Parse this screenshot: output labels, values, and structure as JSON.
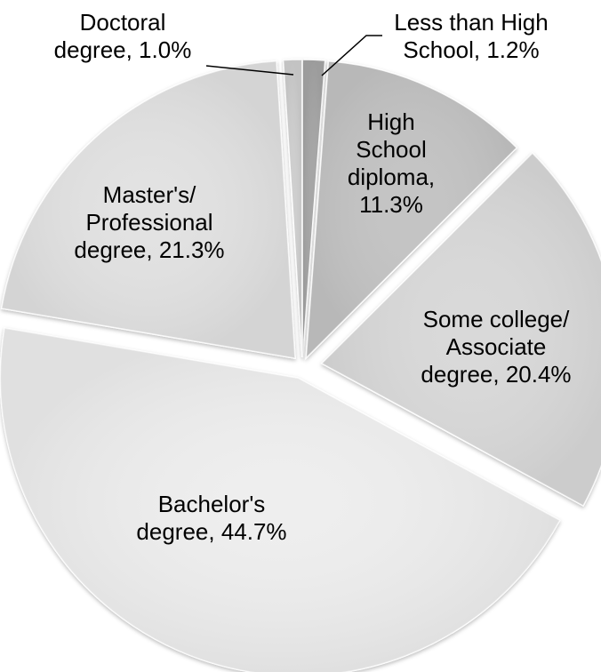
{
  "chart_data": {
    "type": "pie",
    "title": "",
    "slices": [
      {
        "label": "Less than High School",
        "value": 1.2,
        "color": "#a6a6a6",
        "label_lines": [
          "Less than High",
          "School, 1.2%"
        ]
      },
      {
        "label": "High School diploma",
        "value": 11.3,
        "color": "#c4c4c4",
        "label_lines": [
          "High",
          "School",
          "diploma,",
          "11.3%"
        ]
      },
      {
        "label": "Some college/ Associate degree",
        "value": 20.4,
        "color": "#d9d9d9",
        "label_lines": [
          "Some college/",
          "Associate",
          "degree, 20.4%"
        ]
      },
      {
        "label": "Bachelor's degree",
        "value": 44.7,
        "color": "#eeeeee",
        "label_lines": [
          "Bachelor's",
          "degree, 44.7%"
        ]
      },
      {
        "label": "Master's/ Professional degree",
        "value": 21.3,
        "color": "#e2e2e2",
        "label_lines": [
          "Master's/",
          "Professional",
          "degree, 21.3%"
        ]
      },
      {
        "label": "Doctoral degree",
        "value": 1.0,
        "color": "#cfcfcf",
        "label_lines": [
          "Doctoral",
          "degree, 1.0%"
        ]
      }
    ],
    "legend": "none"
  }
}
